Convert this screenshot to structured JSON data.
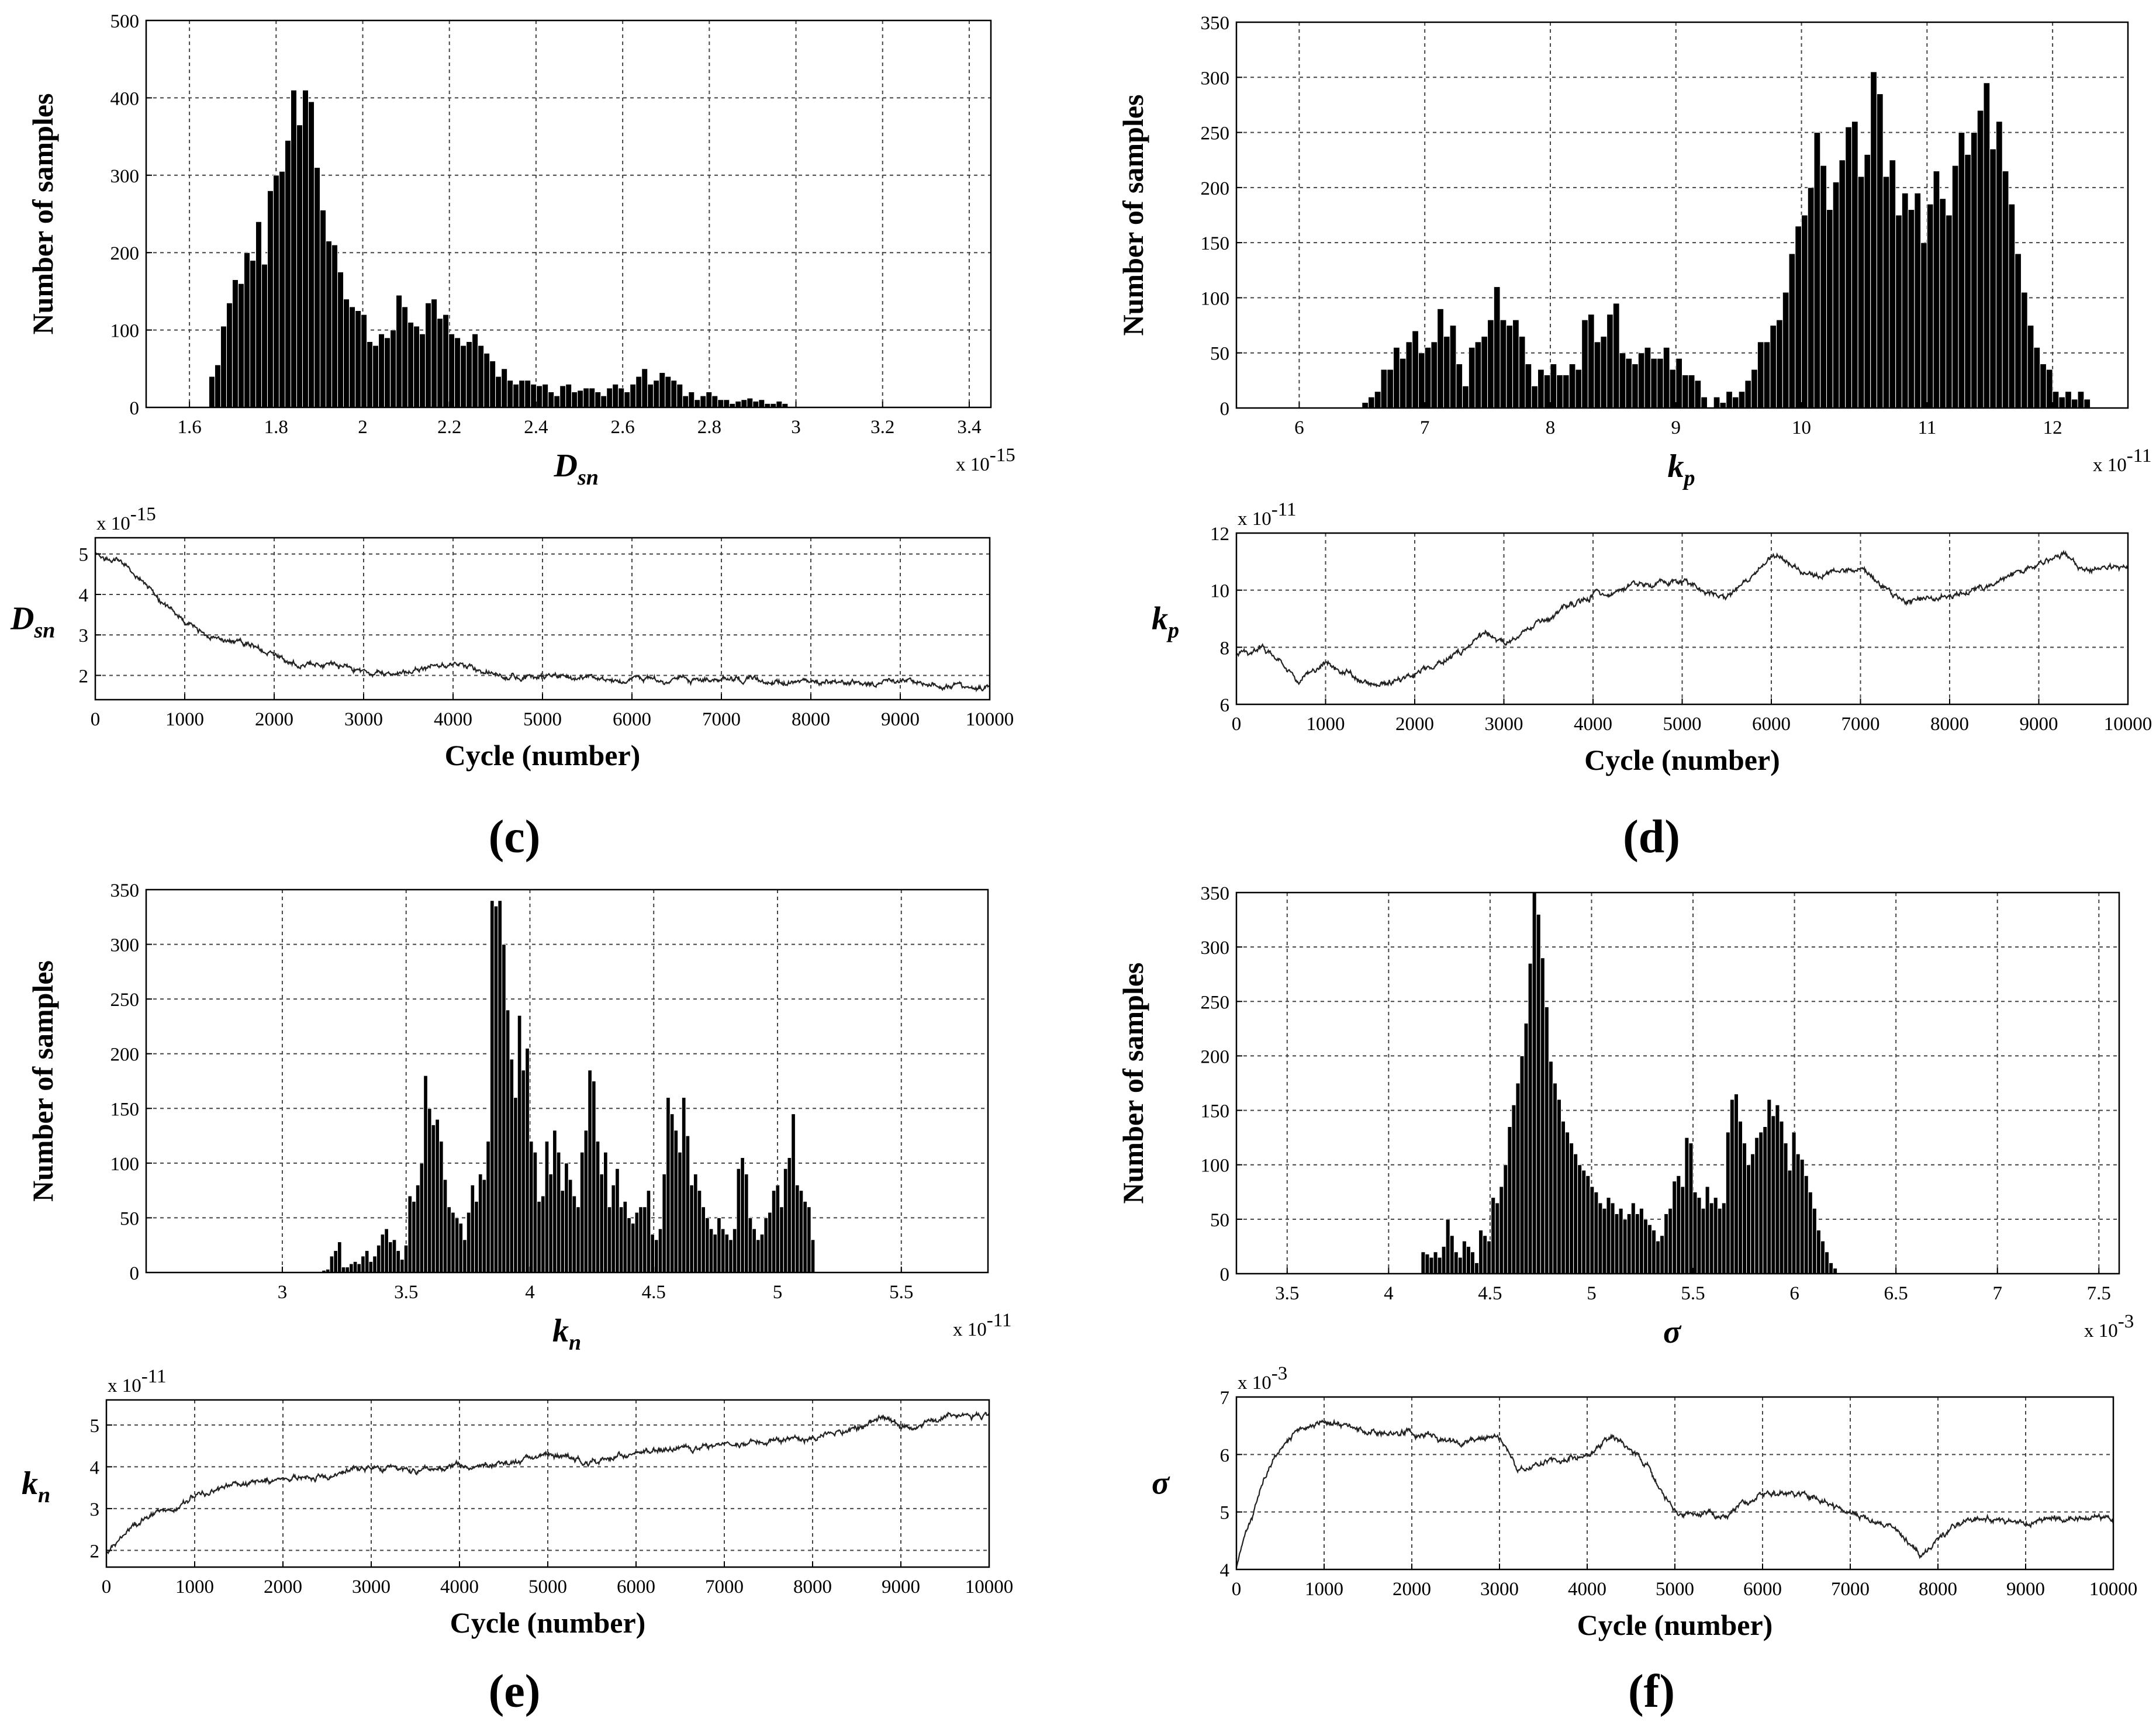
{
  "panel_labels": [
    "(c)",
    "(d)",
    "(e)",
    "(f)"
  ],
  "chart_data": [
    {
      "id": "Dsn-hist",
      "type": "bar",
      "panel": "c",
      "xlabel_sym": "D",
      "xlabel_sub": "sn",
      "ylabel": "Number of samples",
      "xlim": [
        1.5,
        3.45
      ],
      "ylim": [
        0,
        500
      ],
      "multiplier": "x 10",
      "multiplier_exp": "-15",
      "xticks": [
        1.6,
        1.8,
        2.0,
        2.2,
        2.4,
        2.6,
        2.8,
        3.0,
        3.2,
        3.4
      ],
      "xtick_labels": [
        "1.6",
        "1.8",
        "2",
        "2.2",
        "2.4",
        "2.6",
        "2.8",
        "3",
        "3.2",
        "3.4"
      ],
      "yticks": [
        0,
        100,
        200,
        300,
        400,
        500
      ],
      "ytick_labels": [
        "0",
        "100",
        "200",
        "300",
        "400",
        "500"
      ],
      "grid": true,
      "bin_start": 1.645,
      "bin_width": 0.0135,
      "values": [
        40,
        55,
        105,
        135,
        165,
        160,
        200,
        190,
        240,
        185,
        280,
        300,
        305,
        345,
        410,
        365,
        410,
        395,
        310,
        255,
        215,
        210,
        175,
        140,
        130,
        125,
        120,
        85,
        80,
        95,
        90,
        100,
        145,
        130,
        110,
        105,
        95,
        135,
        140,
        115,
        120,
        95,
        90,
        80,
        85,
        95,
        80,
        70,
        60,
        40,
        50,
        35,
        30,
        35,
        35,
        30,
        28,
        30,
        20,
        15,
        28,
        30,
        20,
        22,
        25,
        25,
        20,
        15,
        25,
        30,
        25,
        20,
        30,
        40,
        50,
        30,
        35,
        45,
        40,
        35,
        30,
        15,
        20,
        10,
        15,
        20,
        15,
        10,
        10,
        5,
        8,
        10,
        12,
        8,
        10,
        5,
        5,
        8,
        5
      ],
      "values_note": "per-bar counts estimated from image"
    },
    {
      "id": "kp-hist",
      "type": "bar",
      "panel": "d",
      "xlabel_sym": "k",
      "xlabel_sub": "p",
      "ylabel": "Number of samples",
      "xlim": [
        5.5,
        12.6
      ],
      "ylim": [
        0,
        350
      ],
      "multiplier": "x 10",
      "multiplier_exp": "-11",
      "xticks": [
        6,
        7,
        8,
        9,
        10,
        11,
        12
      ],
      "xtick_labels": [
        "6",
        "7",
        "8",
        "9",
        "10",
        "11",
        "12"
      ],
      "yticks": [
        0,
        50,
        100,
        150,
        200,
        250,
        300,
        350
      ],
      "ytick_labels": [
        "0",
        "50",
        "100",
        "150",
        "200",
        "250",
        "300",
        "350"
      ],
      "grid": true,
      "bin_start": 6.5,
      "bin_width": 0.05,
      "values": [
        5,
        10,
        15,
        35,
        35,
        55,
        45,
        60,
        70,
        50,
        55,
        60,
        90,
        65,
        75,
        40,
        20,
        55,
        60,
        65,
        80,
        110,
        80,
        75,
        80,
        65,
        40,
        20,
        35,
        30,
        40,
        30,
        30,
        40,
        35,
        80,
        85,
        60,
        65,
        85,
        95,
        50,
        45,
        40,
        50,
        55,
        45,
        45,
        55,
        35,
        45,
        30,
        30,
        25,
        10,
        0,
        10,
        5,
        15,
        10,
        15,
        25,
        35,
        60,
        60,
        75,
        80,
        105,
        140,
        165,
        175,
        200,
        250,
        220,
        180,
        205,
        225,
        255,
        260,
        210,
        230,
        305,
        285,
        210,
        225,
        175,
        195,
        180,
        195,
        150,
        185,
        215,
        190,
        175,
        220,
        250,
        230,
        250,
        270,
        295,
        235,
        260,
        215,
        185,
        140,
        105,
        75,
        55,
        40,
        35,
        15,
        10,
        15,
        8,
        15,
        8,
        0
      ],
      "values_note": "per-bar counts estimated from image"
    },
    {
      "id": "kn-hist",
      "type": "bar",
      "panel": "e",
      "xlabel_sym": "k",
      "xlabel_sub": "n",
      "ylabel": "Number of samples",
      "xlim": [
        2.45,
        5.85
      ],
      "ylim": [
        0,
        350
      ],
      "multiplier": "x 10",
      "multiplier_exp": "-11",
      "xticks": [
        3,
        3.5,
        4,
        4.5,
        5,
        5.5
      ],
      "xtick_labels": [
        "3",
        "3.5",
        "4",
        "4.5",
        "5",
        "5.5"
      ],
      "yticks": [
        0,
        50,
        100,
        150,
        200,
        250,
        300,
        350
      ],
      "ytick_labels": [
        "0",
        "50",
        "100",
        "150",
        "200",
        "250",
        "300",
        "350"
      ],
      "grid": true,
      "bin_start": 3.16,
      "bin_width": 0.0158,
      "values": [
        2,
        3,
        15,
        20,
        28,
        5,
        5,
        8,
        10,
        8,
        15,
        20,
        10,
        15,
        25,
        35,
        40,
        28,
        30,
        20,
        12,
        25,
        70,
        65,
        80,
        100,
        180,
        150,
        135,
        140,
        120,
        85,
        60,
        55,
        50,
        45,
        30,
        55,
        80,
        65,
        90,
        85,
        120,
        340,
        335,
        340,
        300,
        240,
        195,
        160,
        235,
        185,
        205,
        120,
        110,
        65,
        70,
        120,
        90,
        130,
        110,
        75,
        100,
        85,
        70,
        60,
        110,
        130,
        185,
        175,
        120,
        90,
        110,
        60,
        80,
        95,
        60,
        65,
        50,
        45,
        55,
        60,
        60,
        75,
        35,
        30,
        40,
        90,
        160,
        145,
        130,
        110,
        160,
        125,
        80,
        90,
        75,
        60,
        50,
        40,
        35,
        50,
        40,
        35,
        30,
        40,
        95,
        105,
        90,
        50,
        40,
        30,
        35,
        50,
        55,
        75,
        80,
        60,
        95,
        105,
        145,
        80,
        75,
        65,
        60,
        30
      ],
      "values_note": "per-bar counts estimated from image"
    },
    {
      "id": "sigma-hist",
      "type": "bar",
      "panel": "f",
      "xlabel_sym": "σ",
      "xlabel_sub": "",
      "ylabel": "Number of samples",
      "xlim": [
        3.25,
        7.6
      ],
      "ylim": [
        0,
        350
      ],
      "multiplier": "x 10",
      "multiplier_exp": "-3",
      "xticks": [
        3.5,
        4,
        4.5,
        5,
        5.5,
        6,
        6.5,
        7,
        7.5
      ],
      "xtick_labels": [
        "3.5",
        "4",
        "4.5",
        "5",
        "5.5",
        "6",
        "6.5",
        "7",
        "7.5"
      ],
      "yticks": [
        0,
        50,
        100,
        150,
        200,
        250,
        300,
        350
      ],
      "ytick_labels": [
        "0",
        "50",
        "100",
        "150",
        "200",
        "250",
        "300",
        "350"
      ],
      "grid": true,
      "bin_start": 4.16,
      "bin_width": 0.0203,
      "values": [
        20,
        18,
        15,
        20,
        15,
        25,
        50,
        35,
        20,
        15,
        30,
        25,
        20,
        10,
        40,
        35,
        30,
        70,
        65,
        80,
        100,
        135,
        155,
        175,
        200,
        230,
        285,
        350,
        330,
        290,
        245,
        195,
        175,
        160,
        140,
        130,
        120,
        110,
        100,
        95,
        90,
        80,
        75,
        65,
        60,
        70,
        65,
        55,
        60,
        50,
        55,
        65,
        55,
        60,
        50,
        45,
        40,
        30,
        35,
        55,
        60,
        85,
        90,
        80,
        125,
        120,
        75,
        70,
        60,
        80,
        65,
        70,
        60,
        65,
        130,
        160,
        165,
        140,
        120,
        100,
        110,
        125,
        130,
        135,
        160,
        145,
        155,
        140,
        120,
        95,
        130,
        110,
        105,
        90,
        75,
        60,
        40,
        30,
        20,
        10,
        5
      ],
      "values_note": "per-bar counts estimated from image"
    },
    {
      "id": "Dsn-trace",
      "type": "line",
      "panel": "c",
      "ylabel_sym": "D",
      "ylabel_sub": "sn",
      "xlabel": "Cycle (number)",
      "multiplier": "x 10",
      "multiplier_exp": "-15",
      "xlim": [
        0,
        10000
      ],
      "ylim": [
        1.4,
        5.4
      ],
      "xticks": [
        0,
        1000,
        2000,
        3000,
        4000,
        5000,
        6000,
        7000,
        8000,
        9000,
        10000
      ],
      "xtick_labels": [
        "0",
        "1000",
        "2000",
        "3000",
        "4000",
        "5000",
        "6000",
        "7000",
        "8000",
        "9000",
        "10000"
      ],
      "yticks": [
        2,
        3,
        4,
        5
      ],
      "ytick_labels": [
        "2",
        "3",
        "4",
        "5"
      ],
      "grid": true,
      "x": [
        0,
        250,
        500,
        750,
        1000,
        1250,
        1500,
        1750,
        2000,
        2250,
        2500,
        2750,
        3000,
        3250,
        3500,
        3750,
        4000,
        4250,
        4500,
        4750,
        5000,
        6000,
        7000,
        7500,
        8000,
        9000,
        9500,
        10000
      ],
      "y": [
        5.0,
        4.8,
        4.4,
        3.8,
        3.3,
        3.0,
        2.9,
        2.8,
        2.5,
        2.3,
        2.3,
        2.2,
        2.1,
        2.0,
        2.1,
        2.2,
        2.3,
        2.2,
        2.0,
        1.95,
        1.95,
        1.9,
        1.9,
        1.85,
        1.85,
        1.8,
        1.75,
        1.7
      ]
    },
    {
      "id": "kp-trace",
      "type": "line",
      "panel": "d",
      "ylabel_sym": "k",
      "ylabel_sub": "p",
      "xlabel": "Cycle (number)",
      "multiplier": "x 10",
      "multiplier_exp": "-11",
      "xlim": [
        0,
        10000
      ],
      "ylim": [
        6,
        12
      ],
      "xticks": [
        0,
        1000,
        2000,
        3000,
        4000,
        5000,
        6000,
        7000,
        8000,
        9000,
        10000
      ],
      "xtick_labels": [
        "0",
        "1000",
        "2000",
        "3000",
        "4000",
        "5000",
        "6000",
        "7000",
        "8000",
        "9000",
        "10000"
      ],
      "yticks": [
        6,
        8,
        10,
        12
      ],
      "ytick_labels": [
        "6",
        "8",
        "10",
        "12"
      ],
      "grid": true,
      "x": [
        0,
        300,
        500,
        700,
        1000,
        1300,
        1600,
        2000,
        2500,
        2800,
        3000,
        3500,
        4000,
        4500,
        5000,
        5500,
        6000,
        6500,
        7000,
        7500,
        8000,
        8500,
        9000,
        9300,
        9500,
        10000
      ],
      "y": [
        7.7,
        8.0,
        7.5,
        6.8,
        7.5,
        7.0,
        6.6,
        7.1,
        7.8,
        8.5,
        8.1,
        9.0,
        9.8,
        10.2,
        10.3,
        9.7,
        11.2,
        10.5,
        10.8,
        9.6,
        9.8,
        10.2,
        11.0,
        11.2,
        10.8,
        10.8
      ]
    },
    {
      "id": "kn-trace",
      "type": "line",
      "panel": "e",
      "ylabel_sym": "k",
      "ylabel_sub": "n",
      "xlabel": "Cycle (number)",
      "multiplier": "x 10",
      "multiplier_exp": "-11",
      "xlim": [
        0,
        10000
      ],
      "ylim": [
        1.6,
        5.6
      ],
      "xticks": [
        0,
        1000,
        2000,
        3000,
        4000,
        5000,
        6000,
        7000,
        8000,
        9000,
        10000
      ],
      "xtick_labels": [
        "0",
        "1000",
        "2000",
        "3000",
        "4000",
        "5000",
        "6000",
        "7000",
        "8000",
        "9000",
        "10000"
      ],
      "yticks": [
        2,
        3,
        4,
        5
      ],
      "ytick_labels": [
        "2",
        "3",
        "4",
        "5"
      ],
      "grid": true,
      "x": [
        0,
        200,
        500,
        800,
        1000,
        1500,
        2000,
        2500,
        3000,
        3500,
        4000,
        4500,
        5000,
        5500,
        6000,
        7000,
        8000,
        8500,
        8800,
        9000,
        9500,
        10000
      ],
      "y": [
        1.9,
        2.4,
        2.8,
        3.0,
        3.3,
        3.6,
        3.7,
        3.8,
        4.0,
        3.9,
        4.0,
        4.1,
        4.3,
        4.1,
        4.3,
        4.5,
        4.7,
        4.9,
        5.2,
        4.9,
        5.2,
        5.2
      ]
    },
    {
      "id": "sigma-trace",
      "type": "line",
      "panel": "f",
      "ylabel_sym": "σ",
      "ylabel_sub": "",
      "xlabel": "Cycle (number)",
      "multiplier": "x 10",
      "multiplier_exp": "-3",
      "xlim": [
        0,
        10000
      ],
      "ylim": [
        4,
        7
      ],
      "xticks": [
        0,
        1000,
        2000,
        3000,
        4000,
        5000,
        6000,
        7000,
        8000,
        9000,
        10000
      ],
      "xtick_labels": [
        "0",
        "1000",
        "2000",
        "3000",
        "4000",
        "5000",
        "6000",
        "7000",
        "8000",
        "9000",
        "10000"
      ],
      "yticks": [
        4,
        5,
        6,
        7
      ],
      "ytick_labels": [
        "4",
        "5",
        "6",
        "7"
      ],
      "grid": true,
      "x": [
        0,
        100,
        300,
        500,
        700,
        1000,
        1500,
        2000,
        2500,
        3000,
        3200,
        3500,
        4000,
        4300,
        4700,
        5000,
        5500,
        6000,
        6500,
        7000,
        7500,
        7800,
        8000,
        8300,
        9000,
        9500,
        10000
      ],
      "y": [
        4.0,
        4.6,
        5.5,
        6.1,
        6.4,
        6.6,
        6.4,
        6.4,
        6.2,
        6.3,
        5.7,
        5.9,
        6.0,
        6.3,
        5.8,
        5.0,
        4.9,
        5.3,
        5.3,
        5.0,
        4.7,
        4.2,
        4.5,
        4.9,
        4.8,
        4.9,
        4.9
      ]
    }
  ]
}
